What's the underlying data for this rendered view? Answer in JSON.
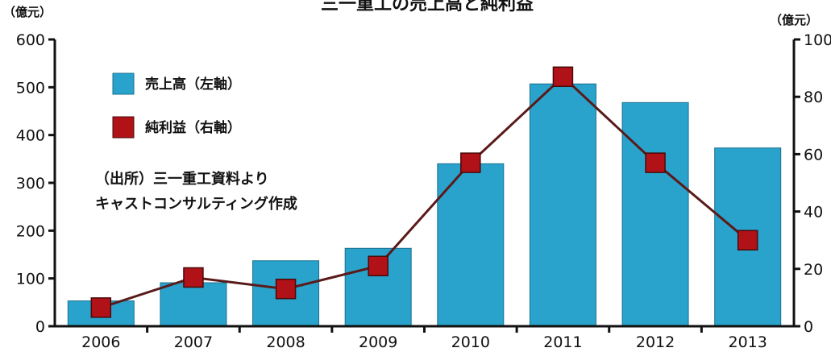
{
  "chart_data": {
    "type": "bar",
    "title": "三一重工の売上高と純利益",
    "unit_left": "（億元）",
    "unit_right": "（億元）",
    "categories": [
      "2006",
      "2007",
      "2008",
      "2009",
      "2010",
      "2011",
      "2012",
      "2013"
    ],
    "series": [
      {
        "name": "売上高（左軸）",
        "type": "bar",
        "axis": "left",
        "color": "#2aa3cc",
        "values": [
          53,
          91,
          137,
          163,
          340,
          507,
          468,
          373
        ]
      },
      {
        "name": "純利益（右軸）",
        "type": "line",
        "axis": "right",
        "color": "#b01218",
        "line_color": "#5a1a1a",
        "values": [
          6.5,
          17,
          13,
          21,
          57,
          87,
          57,
          30
        ]
      }
    ],
    "y_left": {
      "min": 0,
      "max": 600,
      "ticks": [
        "0",
        "100",
        "200",
        "300",
        "400",
        "500",
        "600"
      ]
    },
    "y_right": {
      "min": 0,
      "max": 100,
      "ticks": [
        "0",
        "20",
        "40",
        "60",
        "80",
        "100"
      ]
    },
    "legend_position": "top-left",
    "grid": false,
    "annotation": [
      "（出所）三一重工資料より",
      "キャストコンサルティング作成"
    ]
  }
}
